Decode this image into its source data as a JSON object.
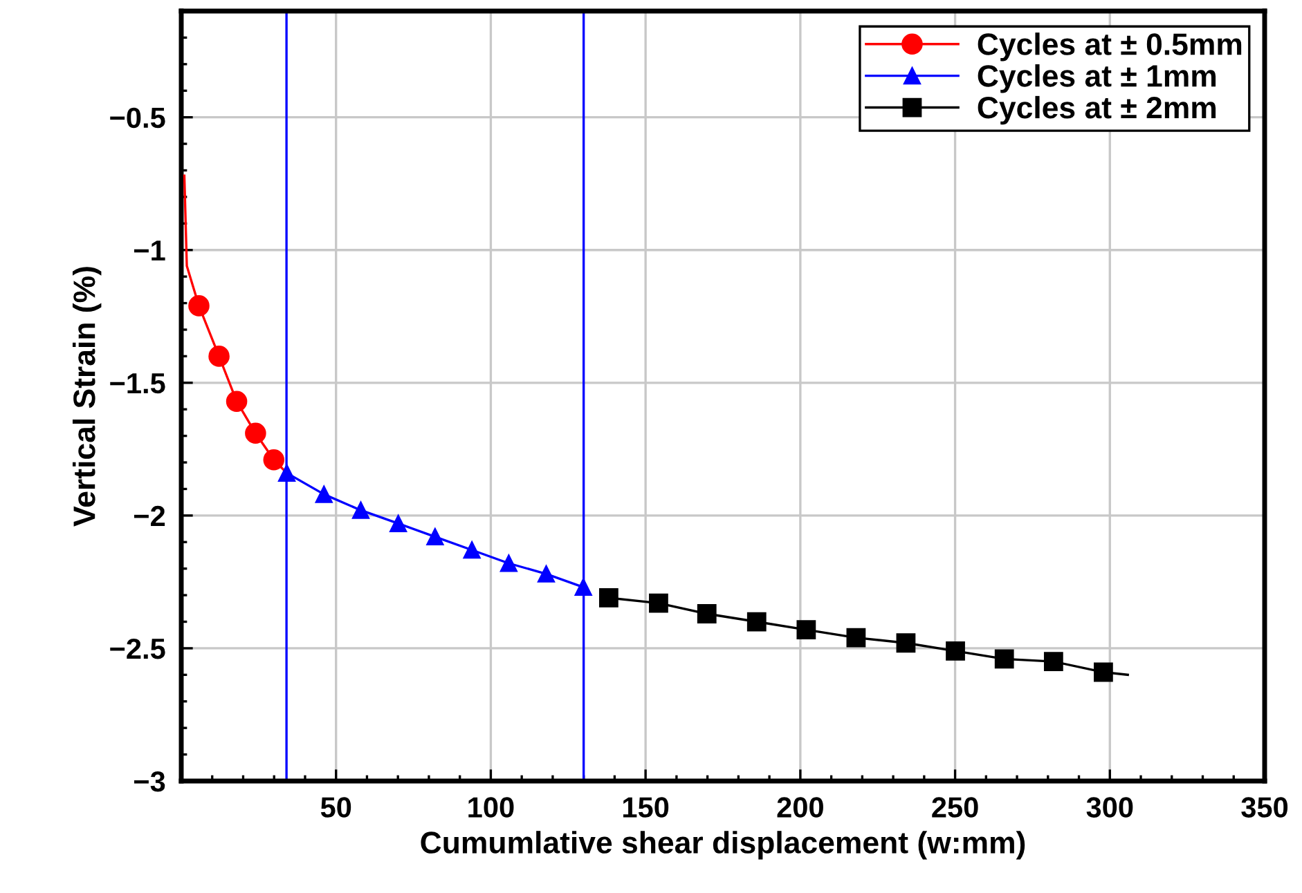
{
  "chart_data": {
    "type": "line",
    "xlabel": "Cumumlative shear displacement (w:mm)",
    "ylabel": "Vertical Strain (%)",
    "xlim": [
      0,
      350
    ],
    "xticks": [
      50,
      100,
      150,
      200,
      250,
      300,
      350
    ],
    "ylim": [
      -3,
      -0.1
    ],
    "yticks": [
      {
        "value": -3,
        "label": "−3"
      },
      {
        "value": -2.5,
        "label": "−2.5"
      },
      {
        "value": -2,
        "label": "−2"
      },
      {
        "value": -1.5,
        "label": "−1.5"
      },
      {
        "value": -1,
        "label": "−1"
      },
      {
        "value": -0.5,
        "label": "−0.5"
      }
    ],
    "grid": true,
    "legend": "top right",
    "ref_lines": [
      {
        "axis": "x",
        "value": 34,
        "color": "#0000ff"
      },
      {
        "axis": "x",
        "value": 130,
        "color": "#0000ff"
      }
    ],
    "series": [
      {
        "color": "#ff0000",
        "marker": "none",
        "x": [
          1,
          1.8,
          5.7
        ],
        "values": [
          -0.72,
          -1.06,
          -1.21
        ]
      },
      {
        "name": "Cycles at ± 0.5mm",
        "color": "#ff0000",
        "marker": "circle",
        "x": [
          5.7,
          12.2,
          17.9,
          24,
          29.9
        ],
        "values": [
          -1.21,
          -1.4,
          -1.57,
          -1.69,
          -1.79
        ]
      },
      {
        "color": "#ff0000",
        "marker": "none",
        "x": [
          29.9,
          34.1
        ],
        "values": [
          -1.79,
          -1.84
        ]
      },
      {
        "name": "Cycles at ± 1mm",
        "color": "#0000ff",
        "marker": "triangle",
        "x": [
          34.1,
          46.1,
          58,
          70.1,
          82,
          93.9,
          105.8,
          117.9,
          129.9
        ],
        "values": [
          -1.84,
          -1.92,
          -1.98,
          -2.03,
          -2.08,
          -2.13,
          -2.18,
          -2.22,
          -2.27
        ]
      },
      {
        "name": "Cycles at ± 2mm",
        "color": "#000000",
        "marker": "square",
        "x": [
          138.1,
          154.2,
          169.8,
          185.9,
          201.9,
          218,
          234.1,
          250.1,
          265.9,
          281.8,
          297.9
        ],
        "values": [
          -2.31,
          -2.33,
          -2.37,
          -2.4,
          -2.43,
          -2.46,
          -2.48,
          -2.51,
          -2.54,
          -2.55,
          -2.59
        ]
      },
      {
        "color": "#000000",
        "marker": "none",
        "x": [
          297.9,
          305.8
        ],
        "values": [
          -2.59,
          -2.6
        ]
      }
    ]
  }
}
